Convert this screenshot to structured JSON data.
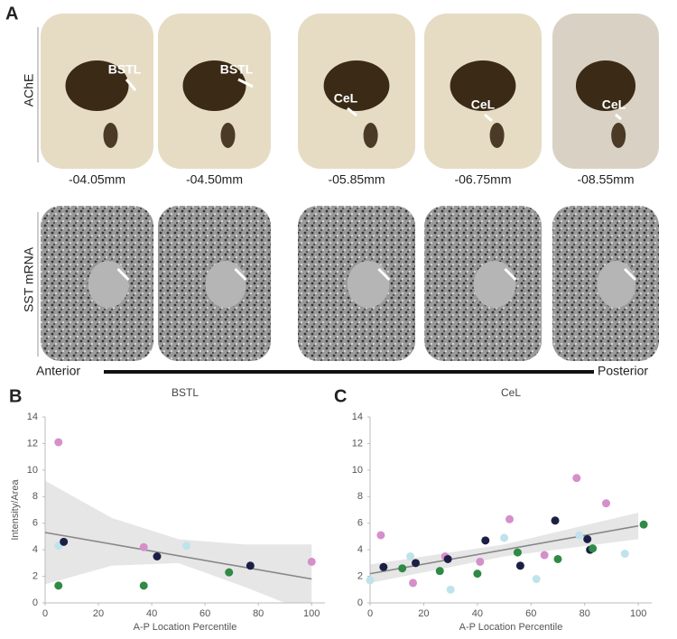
{
  "panel_a": {
    "label": "A",
    "rows": [
      "AChE",
      "SST mRNA"
    ],
    "sections": [
      {
        "depth": "-04.05mm",
        "structure": "BSTL"
      },
      {
        "depth": "-04.50mm",
        "structure": "BSTL"
      },
      {
        "depth": "-05.85mm",
        "structure": "CeL"
      },
      {
        "depth": "-06.75mm",
        "structure": "CeL"
      },
      {
        "depth": "-08.55mm",
        "structure": "CeL"
      }
    ],
    "axis_start": "Anterior",
    "axis_end": "Posterior"
  },
  "chart_data": [
    {
      "type": "scatter",
      "panel_label": "B",
      "title": "BSTL",
      "x_label": "A-P Location Percentile",
      "y_label": "Intensity/Area",
      "xlim": [
        0,
        105
      ],
      "xticks": [
        0,
        20,
        40,
        60,
        80,
        100
      ],
      "ylim": [
        0,
        14
      ],
      "yticks": [
        0,
        2,
        4,
        6,
        8,
        10,
        12,
        14
      ],
      "series": [
        {
          "color": "#d58fcb",
          "x": [
            5,
            37,
            100
          ],
          "values": [
            12.1,
            4.2,
            3.1
          ]
        },
        {
          "color": "#bfe3ea",
          "x": [
            5,
            53
          ],
          "values": [
            4.3,
            4.3
          ]
        },
        {
          "color": "#1c1f45",
          "x": [
            7,
            42,
            77
          ],
          "values": [
            4.6,
            3.5,
            2.8
          ]
        },
        {
          "color": "#2f8a45",
          "x": [
            5,
            37,
            69
          ],
          "values": [
            1.3,
            1.3,
            2.3
          ]
        }
      ],
      "trend": {
        "color": "#888888",
        "x": [
          0,
          100
        ],
        "values": [
          5.3,
          1.8
        ]
      },
      "band": {
        "color": "#e6e6e6",
        "x": [
          0,
          25,
          50,
          75,
          100
        ],
        "upper": [
          9.2,
          6.4,
          4.8,
          4.4,
          4.4
        ],
        "lower": [
          1.4,
          2.8,
          3.0,
          1.2,
          -0.8
        ]
      }
    },
    {
      "type": "scatter",
      "panel_label": "C",
      "title": "CeL",
      "x_label": "A-P Location Percentile",
      "xlim": [
        0,
        105
      ],
      "xticks": [
        0,
        20,
        40,
        60,
        80,
        100
      ],
      "ylim": [
        0,
        14
      ],
      "yticks": [
        0,
        2,
        4,
        6,
        8,
        10,
        12,
        14
      ],
      "series": [
        {
          "color": "#d58fcb",
          "x": [
            4,
            16,
            28,
            41,
            52,
            65,
            77,
            88
          ],
          "values": [
            5.1,
            1.5,
            3.5,
            3.1,
            6.3,
            3.6,
            9.4,
            7.5
          ]
        },
        {
          "color": "#bfe3ea",
          "x": [
            0,
            15,
            30,
            50,
            62,
            78,
            95
          ],
          "values": [
            1.7,
            3.5,
            1.0,
            4.9,
            1.8,
            5.1,
            3.7
          ]
        },
        {
          "color": "#1c1f45",
          "x": [
            5,
            17,
            29,
            43,
            56,
            69,
            81,
            82
          ],
          "values": [
            2.7,
            3.0,
            3.3,
            4.7,
            2.8,
            6.2,
            4.8,
            4.0
          ]
        },
        {
          "color": "#2f8a45",
          "x": [
            12,
            26,
            40,
            55,
            70,
            83,
            102
          ],
          "values": [
            2.6,
            2.4,
            2.2,
            3.8,
            3.3,
            4.1,
            5.9
          ]
        }
      ],
      "trend": {
        "color": "#888888",
        "x": [
          0,
          100
        ],
        "values": [
          2.2,
          5.8
        ]
      },
      "band": {
        "color": "#e6e6e6",
        "x": [
          0,
          50,
          100
        ],
        "upper": [
          2.9,
          4.4,
          6.8
        ],
        "lower": [
          1.5,
          3.5,
          4.8
        ]
      }
    }
  ]
}
